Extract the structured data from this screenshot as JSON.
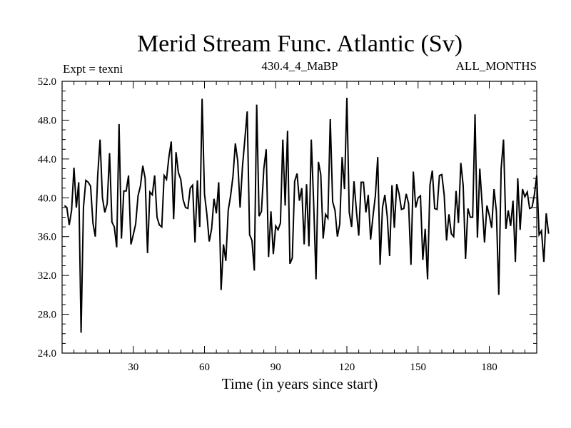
{
  "chart_data": {
    "type": "line",
    "title": "Merid Stream Func. Atlantic (Sv)",
    "subtitle_left": "Expt = texni",
    "subtitle_center": "430.4_4_MaBP",
    "subtitle_right": "ALL_MONTHS",
    "xlabel": "Time (in years since start)",
    "ylabel": "",
    "xlim": [
      0,
      200
    ],
    "ylim": [
      24.0,
      52.0
    ],
    "x_ticks": [
      30,
      60,
      90,
      120,
      150,
      180
    ],
    "y_ticks": [
      "24.0",
      "28.0",
      "32.0",
      "36.0",
      "40.0",
      "44.0",
      "48.0",
      "52.0"
    ],
    "grid": false,
    "series": [
      {
        "name": "Merid Stream Func. Atlantic",
        "x_start": 1,
        "x_step": 1,
        "values": [
          39.2,
          39.0,
          37.2,
          38.7,
          43.1,
          39.0,
          41.6,
          26.1,
          39.0,
          41.8,
          41.6,
          41.2,
          37.4,
          36.0,
          42.3,
          46.0,
          40.0,
          38.5,
          39.4,
          44.6,
          37.5,
          37.0,
          34.9,
          47.6,
          35.8,
          40.7,
          40.7,
          42.3,
          35.2,
          36.2,
          37.3,
          40.2,
          41.2,
          43.3,
          42.0,
          34.3,
          40.6,
          40.3,
          42.3,
          38.0,
          37.2,
          37.0,
          42.3,
          41.9,
          44.2,
          45.8,
          37.8,
          44.7,
          42.6,
          41.9,
          39.8,
          39.0,
          38.9,
          41.0,
          41.3,
          35.4,
          41.8,
          37.0,
          50.2,
          40.4,
          38.3,
          35.5,
          36.8,
          39.9,
          38.4,
          41.6,
          30.5,
          35.2,
          33.5,
          38.7,
          40.2,
          42.2,
          45.6,
          43.8,
          39.0,
          43.2,
          46.0,
          48.9,
          36.2,
          35.6,
          32.5,
          49.6,
          38.1,
          38.6,
          43.0,
          45.0,
          33.9,
          38.6,
          34.2,
          37.1,
          36.7,
          37.4,
          46.0,
          39.2,
          46.9,
          33.2,
          33.8,
          41.7,
          42.5,
          39.7,
          41.0,
          35.2,
          41.4,
          35.0,
          46.0,
          39.5,
          31.6,
          43.7,
          42.4,
          35.8,
          38.3,
          37.9,
          48.1,
          39.6,
          38.7,
          36.0,
          37.3,
          44.2,
          40.9,
          50.3,
          38.5,
          37.0,
          41.7,
          38.7,
          36.1,
          41.6,
          41.6,
          38.5,
          40.3,
          35.7,
          38.1,
          40.2,
          44.2,
          33.1,
          39.0,
          40.3,
          38.1,
          34.0,
          41.3,
          36.9,
          41.4,
          40.4,
          38.8,
          38.9,
          40.4,
          39.4,
          33.1,
          42.7,
          39.0,
          40.0,
          40.2,
          33.6,
          36.8,
          31.6,
          41.3,
          42.8,
          38.9,
          38.8,
          42.3,
          42.4,
          40.3,
          35.6,
          38.3,
          36.3,
          36.0,
          40.7,
          37.4,
          43.6,
          41.3,
          33.7,
          38.9,
          38.0,
          38.0,
          48.6,
          35.9,
          43.0,
          39.3,
          35.4,
          39.2,
          38.2,
          36.9,
          40.9,
          38.6,
          30.0,
          43.0,
          46.0,
          36.8,
          38.7,
          37.1,
          39.7,
          33.4,
          42.0,
          36.7,
          40.9,
          40.1,
          40.6,
          38.9,
          39.0,
          40.3,
          42.3,
          36.2,
          36.6,
          33.4,
          38.4,
          36.3
        ]
      }
    ]
  }
}
